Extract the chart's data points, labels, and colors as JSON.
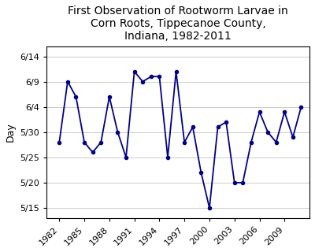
{
  "title": "First Observation of Rootworm Larvae in\nCorn Roots, Tippecanoe County,\nIndiana, 1982-2011",
  "ylabel": "Day",
  "years": [
    1982,
    1983,
    1984,
    1985,
    1986,
    1987,
    1988,
    1989,
    1990,
    1991,
    1992,
    1993,
    1994,
    1995,
    1996,
    1997,
    1998,
    1999,
    2000,
    2001,
    2002,
    2003,
    2004,
    2005,
    2006,
    2007,
    2008,
    2009,
    2010,
    2011
  ],
  "days": [
    148,
    160,
    157,
    148,
    146,
    148,
    157,
    150,
    145,
    162,
    160,
    161,
    161,
    145,
    162,
    148,
    151,
    142,
    135,
    151,
    152,
    140,
    140,
    148,
    154,
    150,
    148,
    154,
    149,
    155
  ],
  "ytick_days": [
    135,
    140,
    145,
    150,
    155,
    160,
    165
  ],
  "ytick_labels": [
    "5/15",
    "5/20",
    "5/25",
    "5/30",
    "6/4",
    "6/9",
    "6/14"
  ],
  "xtick_years": [
    1982,
    1985,
    1988,
    1991,
    1994,
    1997,
    2000,
    2003,
    2006,
    2009
  ],
  "line_color": "#00008B",
  "marker": "o",
  "markersize": 3,
  "linewidth": 1.3,
  "background_color": "#ffffff",
  "title_fontsize": 10,
  "axis_fontsize": 9,
  "tick_fontsize": 8
}
